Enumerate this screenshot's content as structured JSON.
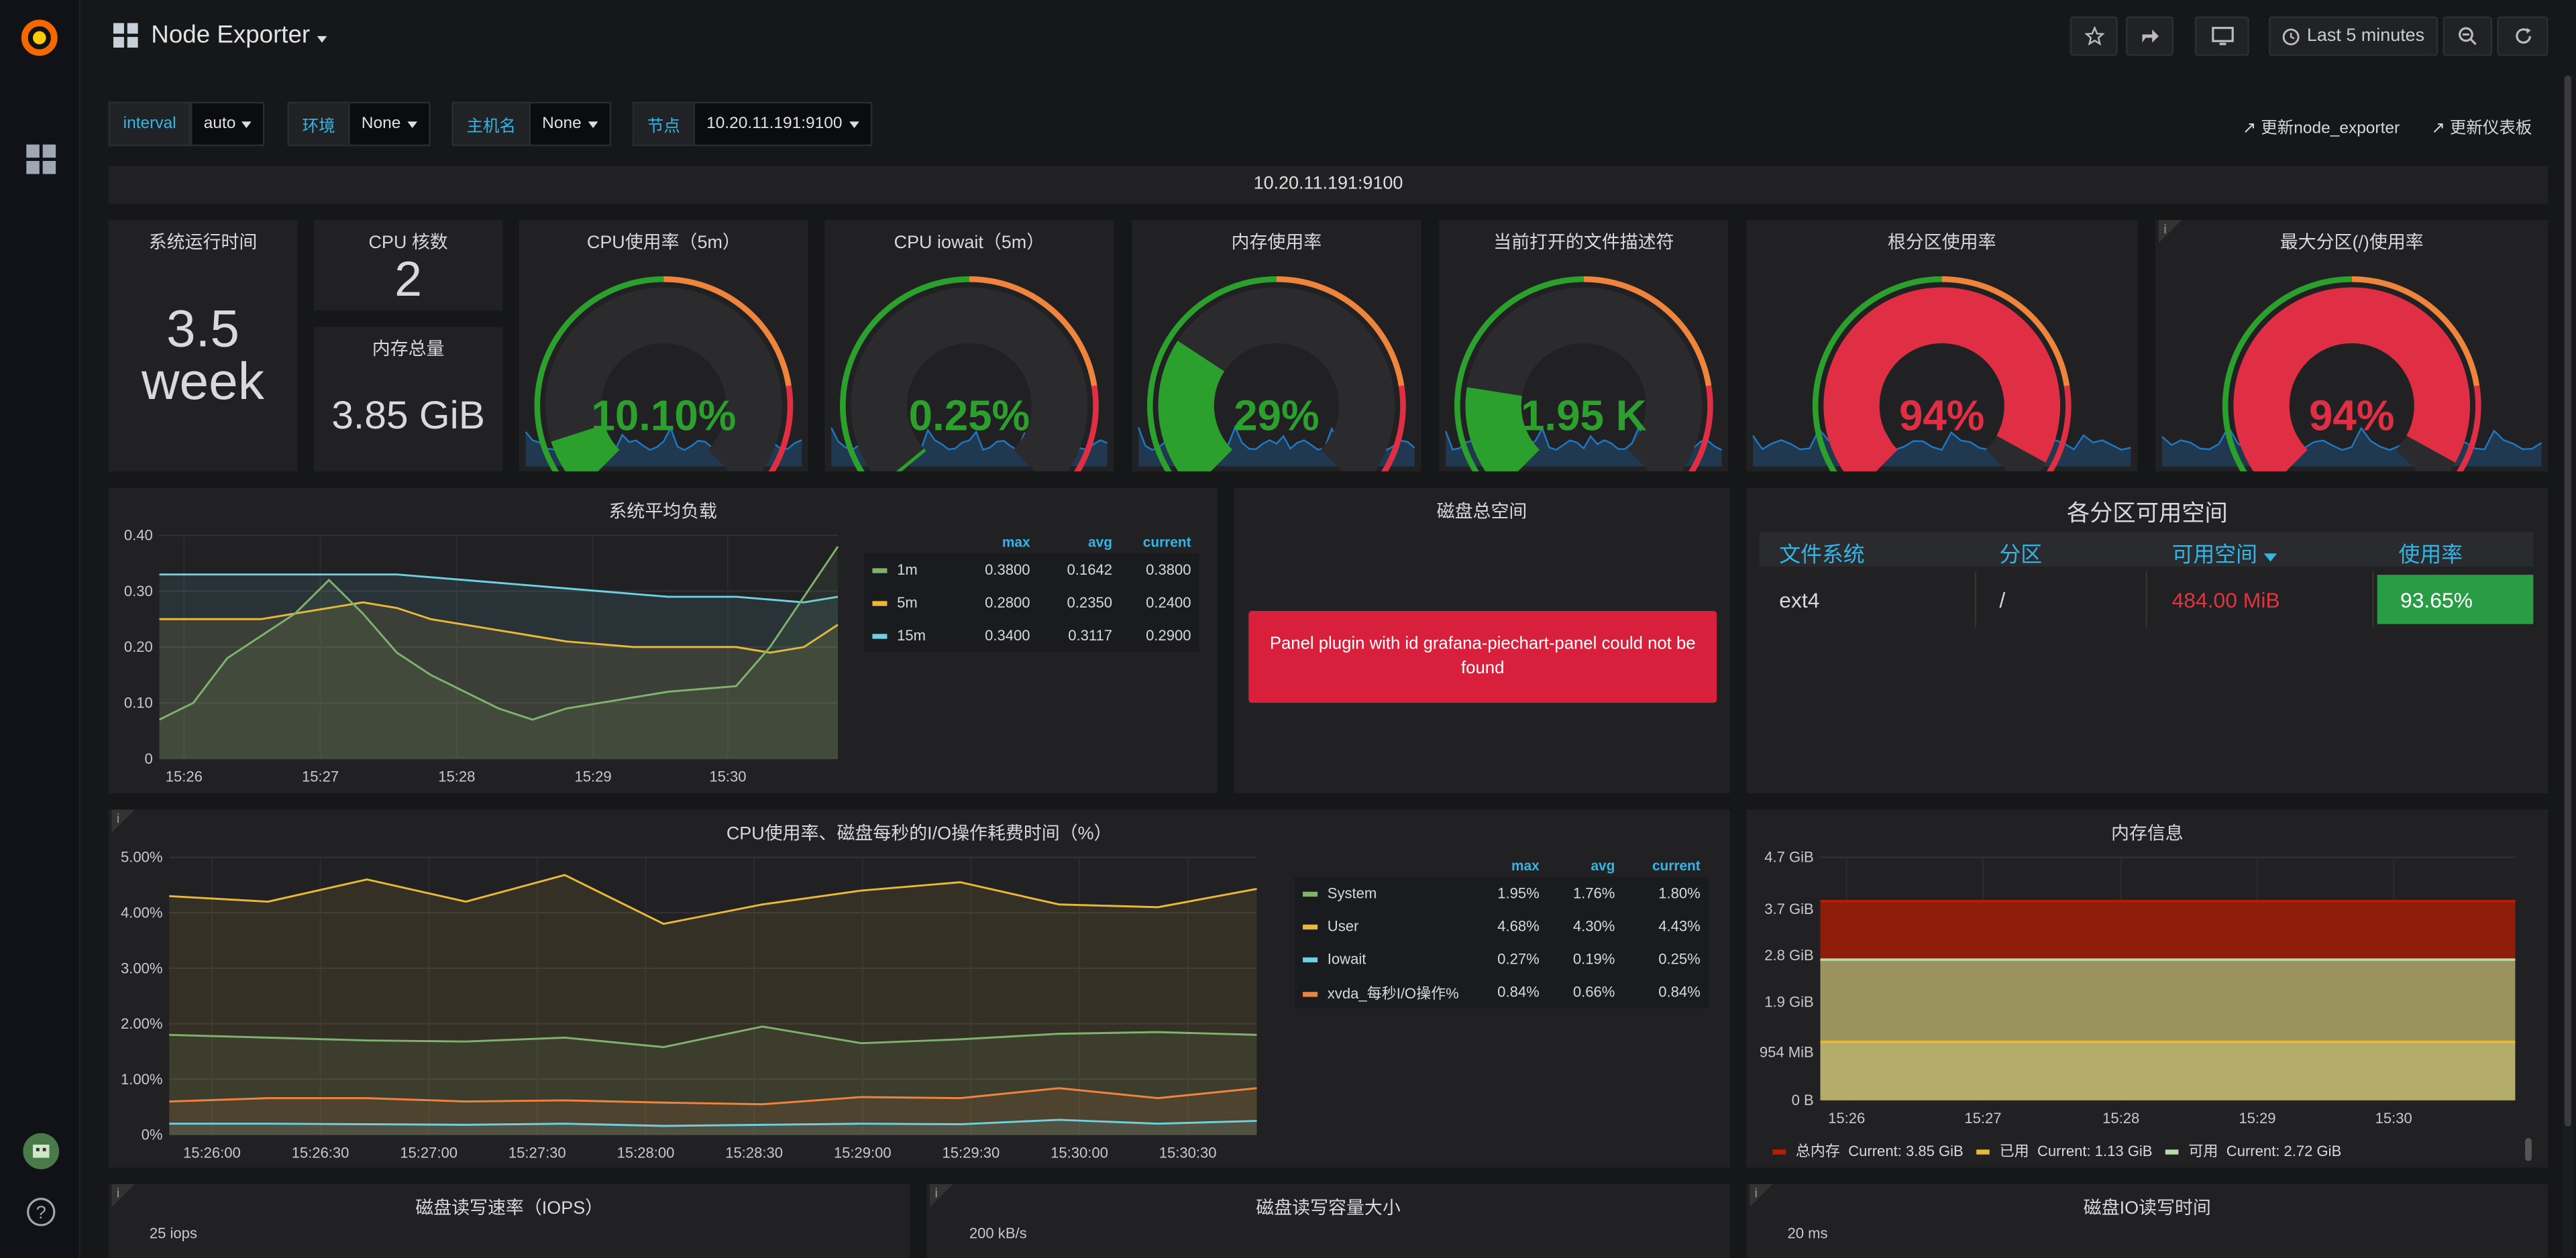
{
  "header": {
    "title": "Node Exporter",
    "time_range": "Last 5 minutes"
  },
  "variables": [
    {
      "label": "interval",
      "value": "auto"
    },
    {
      "label": "环境",
      "value": "None"
    },
    {
      "label": "主机名",
      "value": "None"
    },
    {
      "label": "节点",
      "value": "10.20.11.191:9100"
    }
  ],
  "links": {
    "update_exporter": "更新node_exporter",
    "update_dashboard": "更新仪表板"
  },
  "row_title": "10.20.11.191:9100",
  "stats": {
    "uptime_title": "系统运行时间",
    "uptime_val1": "3.5",
    "uptime_val2": "week",
    "cpu_cores_title": "CPU 核数",
    "cpu_cores": "2",
    "mem_total_title": "内存总量",
    "mem_total": "3.85 GiB"
  },
  "gauges": [
    {
      "title": "CPU使用率（5m）",
      "value": "10.10%",
      "pct": 0.101,
      "color": "#2ca02c"
    },
    {
      "title": "CPU iowait（5m）",
      "value": "0.25%",
      "pct": 0.0025,
      "color": "#2ca02c"
    },
    {
      "title": "内存使用率",
      "value": "29%",
      "pct": 0.29,
      "color": "#2ca02c"
    },
    {
      "title": "当前打开的文件描述符",
      "value": "1.95 K",
      "pct": 0.2,
      "color": "#2ca02c"
    },
    {
      "title": "根分区使用率",
      "value": "94%",
      "pct": 0.94,
      "color": "#e02f44"
    },
    {
      "title": "最大分区(/)使用率",
      "value": "94%",
      "pct": 0.94,
      "color": "#e02f44"
    }
  ],
  "load": {
    "title": "系统平均负载",
    "legend_headers": [
      "max",
      "avg",
      "current"
    ],
    "series": [
      {
        "name": "1m",
        "color": "#7eb26d",
        "stats": [
          "0.3800",
          "0.1642",
          "0.3800"
        ]
      },
      {
        "name": "5m",
        "color": "#eab839",
        "stats": [
          "0.2800",
          "0.2350",
          "0.2400"
        ]
      },
      {
        "name": "15m",
        "color": "#6ed0e0",
        "stats": [
          "0.3400",
          "0.3117",
          "0.2900"
        ]
      }
    ],
    "yticks": [
      "0.40",
      "0.30",
      "0.20",
      "0.10",
      "0"
    ],
    "xticks": [
      "15:26",
      "15:27",
      "15:28",
      "15:29",
      "15:30"
    ]
  },
  "disk_total": {
    "title": "磁盘总空间",
    "error": "Panel plugin with id grafana-piechart-panel could not be found"
  },
  "partitions": {
    "title": "各分区可用空间",
    "headers": [
      "文件系统",
      "分区",
      "可用空间",
      "使用率"
    ],
    "row": [
      "ext4",
      "/",
      "484.00 MiB",
      "93.65%"
    ]
  },
  "cpu_io": {
    "title": "CPU使用率、磁盘每秒的I/O操作耗费时间（%）",
    "legend_headers": [
      "max",
      "avg",
      "current"
    ],
    "series": [
      {
        "name": "System",
        "color": "#7eb26d",
        "stats": [
          "1.95%",
          "1.76%",
          "1.80%"
        ]
      },
      {
        "name": "User",
        "color": "#eab839",
        "stats": [
          "4.68%",
          "4.30%",
          "4.43%"
        ]
      },
      {
        "name": "Iowait",
        "color": "#6ed0e0",
        "stats": [
          "0.27%",
          "0.19%",
          "0.25%"
        ]
      },
      {
        "name": "xvda_每秒I/O操作%",
        "color": "#ef843c",
        "stats": [
          "0.84%",
          "0.66%",
          "0.84%"
        ]
      }
    ],
    "yticks": [
      "5.00%",
      "4.00%",
      "3.00%",
      "2.00%",
      "1.00%",
      "0%"
    ],
    "xticks": [
      "15:26:00",
      "15:26:30",
      "15:27:00",
      "15:27:30",
      "15:28:00",
      "15:28:30",
      "15:29:00",
      "15:29:30",
      "15:30:00",
      "15:30:30"
    ]
  },
  "mem_info": {
    "title": "内存信息",
    "yticks": [
      "4.7 GiB",
      "3.7 GiB",
      "2.8 GiB",
      "1.9 GiB",
      "954 MiB",
      "0 B"
    ],
    "xticks": [
      "15:26",
      "15:27",
      "15:28",
      "15:29",
      "15:30"
    ],
    "legend": [
      {
        "name": "总内存",
        "current": "Current: 3.85 GiB",
        "color": "#bf1b00"
      },
      {
        "name": "已用",
        "current": "Current: 1.13 GiB",
        "color": "#eab839"
      },
      {
        "name": "可用",
        "current": "Current: 2.72 GiB",
        "color": "#b7dbab"
      }
    ]
  },
  "bottom": [
    {
      "title": "磁盘读写速率（IOPS）",
      "ytick": "25 iops"
    },
    {
      "title": "磁盘读写容量大小",
      "ytick": "200 kB/s"
    },
    {
      "title": "磁盘IO读写时间",
      "ytick": "20 ms"
    }
  ],
  "chart_data": [
    {
      "type": "line",
      "title": "系统平均负载",
      "x": [
        "15:25:45",
        "15:26:00",
        "15:26:15",
        "15:26:30",
        "15:26:45",
        "15:27:00",
        "15:27:15",
        "15:27:30",
        "15:27:45",
        "15:28:00",
        "15:28:15",
        "15:28:30",
        "15:28:45",
        "15:29:00",
        "15:29:15",
        "15:29:30",
        "15:29:45",
        "15:30:00",
        "15:30:15",
        "15:30:30",
        "15:30:45"
      ],
      "series": [
        {
          "name": "1m",
          "values": [
            0.07,
            0.1,
            0.18,
            0.22,
            0.26,
            0.32,
            0.26,
            0.19,
            0.15,
            0.12,
            0.09,
            0.07,
            0.09,
            0.1,
            0.11,
            0.12,
            0.125,
            0.13,
            0.2,
            0.29,
            0.38
          ]
        },
        {
          "name": "5m",
          "values": [
            0.25,
            0.25,
            0.25,
            0.25,
            0.26,
            0.27,
            0.28,
            0.27,
            0.25,
            0.24,
            0.23,
            0.22,
            0.21,
            0.205,
            0.2,
            0.2,
            0.2,
            0.2,
            0.19,
            0.2,
            0.24
          ]
        },
        {
          "name": "15m",
          "values": [
            0.33,
            0.33,
            0.33,
            0.33,
            0.33,
            0.33,
            0.33,
            0.33,
            0.325,
            0.32,
            0.315,
            0.31,
            0.305,
            0.3,
            0.295,
            0.29,
            0.29,
            0.29,
            0.285,
            0.28,
            0.29
          ]
        }
      ],
      "ylim": [
        0,
        0.4
      ]
    },
    {
      "type": "line",
      "title": "CPU使用率、磁盘每秒的I/O操作耗费时间（%）",
      "x": [
        "15:25:50",
        "15:26:00",
        "15:26:30",
        "15:27:00",
        "15:27:30",
        "15:28:00",
        "15:28:30",
        "15:29:00",
        "15:29:30",
        "15:30:00",
        "15:30:30",
        "15:30:40"
      ],
      "series": [
        {
          "name": "System",
          "values": [
            1.8,
            1.75,
            1.7,
            1.68,
            1.75,
            1.58,
            1.95,
            1.65,
            1.72,
            1.82,
            1.85,
            1.8
          ]
        },
        {
          "name": "User",
          "values": [
            4.3,
            4.2,
            4.6,
            4.2,
            4.68,
            3.8,
            4.15,
            4.4,
            4.55,
            4.15,
            4.1,
            4.43
          ]
        },
        {
          "name": "Iowait",
          "values": [
            0.2,
            0.2,
            0.19,
            0.18,
            0.2,
            0.16,
            0.18,
            0.2,
            0.19,
            0.27,
            0.2,
            0.25
          ]
        },
        {
          "name": "xvda_每秒I/O操作%",
          "values": [
            0.6,
            0.66,
            0.66,
            0.6,
            0.62,
            0.58,
            0.55,
            0.68,
            0.66,
            0.84,
            0.66,
            0.84
          ]
        }
      ],
      "ylim": [
        0,
        5
      ]
    },
    {
      "type": "area",
      "title": "内存信息",
      "x": [
        "15:25:50",
        "15:26:00",
        "15:27:00",
        "15:28:00",
        "15:29:00",
        "15:30:00",
        "15:30:50"
      ],
      "series": [
        {
          "name": "总内存",
          "values": [
            3.85,
            3.85,
            3.85,
            3.85,
            3.85,
            3.85,
            3.85
          ]
        },
        {
          "name": "已用",
          "values": [
            1.13,
            1.13,
            1.13,
            1.13,
            1.13,
            1.13,
            1.13
          ]
        },
        {
          "name": "可用",
          "values": [
            2.72,
            2.72,
            2.72,
            2.72,
            2.72,
            2.72,
            2.72
          ]
        }
      ],
      "ylabel": "GiB",
      "ylim": [
        0,
        4.7
      ]
    }
  ]
}
